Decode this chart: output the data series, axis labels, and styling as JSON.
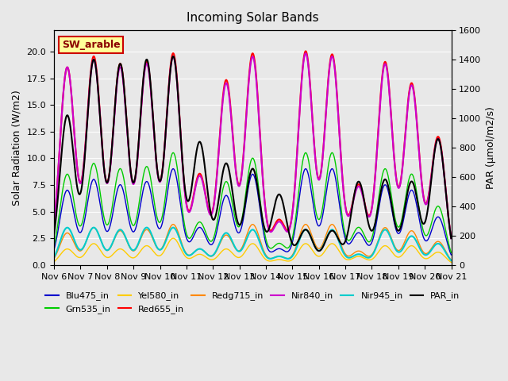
{
  "title": "Incoming Solar Bands",
  "ylabel_left": "Solar Radiation (W/m2)",
  "ylabel_right": "PAR (μmol/m2/s)",
  "ylim_left": [
    0,
    22
  ],
  "ylim_right": [
    0,
    1600
  ],
  "background_color": "#e8e8e8",
  "plot_bg_color": "#e8e8e8",
  "annotation_text": "SW_arable",
  "annotation_color": "#8B0000",
  "annotation_bg": "#ffff99",
  "annotation_border": "#cc0000",
  "series": [
    {
      "name": "Blu475_in",
      "color": "#0000cc",
      "lw": 1.0
    },
    {
      "name": "Grn535_in",
      "color": "#00cc00",
      "lw": 1.0
    },
    {
      "name": "Yel580_in",
      "color": "#ffcc00",
      "lw": 1.0
    },
    {
      "name": "Red655_in",
      "color": "#ff0000",
      "lw": 1.5
    },
    {
      "name": "Redg715_in",
      "color": "#ff8800",
      "lw": 1.0
    },
    {
      "name": "Nir840_in",
      "color": "#cc00cc",
      "lw": 1.5
    },
    {
      "name": "Nir945_in",
      "color": "#00cccc",
      "lw": 1.5
    },
    {
      "name": "PAR_in",
      "color": "#000000",
      "lw": 1.5
    }
  ],
  "xtick_labels": [
    "Nov 6",
    "Nov 7",
    "Nov 8",
    "Nov 9",
    "Nov 10",
    "Nov 11",
    "Nov 12",
    "Nov 13",
    "Nov 14",
    "Nov 15",
    "Nov 16",
    "Nov 17",
    "Nov 18",
    "Nov 19",
    "Nov 20",
    "Nov 21"
  ],
  "days": 15,
  "points_per_day": 144,
  "red_peaks": [
    18.5,
    19.5,
    18.8,
    19.0,
    19.8,
    8.5,
    17.3,
    19.8,
    4.2,
    20.0,
    19.7,
    7.5,
    19.0,
    17.0,
    12.0
  ],
  "nir840_pk": [
    18.5,
    19.2,
    18.5,
    18.8,
    19.5,
    8.3,
    17.0,
    19.5,
    4.0,
    19.8,
    19.5,
    7.3,
    18.8,
    16.8,
    11.8
  ],
  "grn_pk": [
    8.5,
    9.5,
    9.0,
    9.2,
    10.5,
    4.0,
    7.8,
    10.0,
    2.0,
    10.5,
    10.5,
    3.5,
    9.0,
    8.5,
    5.5
  ],
  "yel_pk": [
    1.5,
    2.0,
    1.5,
    1.8,
    2.5,
    1.0,
    1.5,
    2.0,
    0.5,
    2.0,
    2.0,
    0.8,
    1.8,
    1.8,
    1.2
  ],
  "blu_pk": [
    7.0,
    8.0,
    7.5,
    7.8,
    9.0,
    3.5,
    6.5,
    8.5,
    1.5,
    9.0,
    9.0,
    3.0,
    7.5,
    7.0,
    4.5
  ],
  "redg_pk": [
    3.0,
    3.5,
    3.2,
    3.3,
    3.8,
    1.5,
    2.8,
    3.8,
    0.8,
    3.8,
    3.8,
    1.3,
    3.5,
    3.2,
    2.2
  ],
  "nir945_pk": [
    3.5,
    3.5,
    3.3,
    3.5,
    3.5,
    1.5,
    3.0,
    3.3,
    0.8,
    3.3,
    3.3,
    1.0,
    3.3,
    2.7,
    2.0
  ],
  "par_pk": [
    14.0,
    19.2,
    18.8,
    19.2,
    19.5,
    11.5,
    9.5,
    9.0,
    6.6,
    3.3,
    3.2,
    7.8,
    8.0,
    7.8,
    11.8
  ]
}
